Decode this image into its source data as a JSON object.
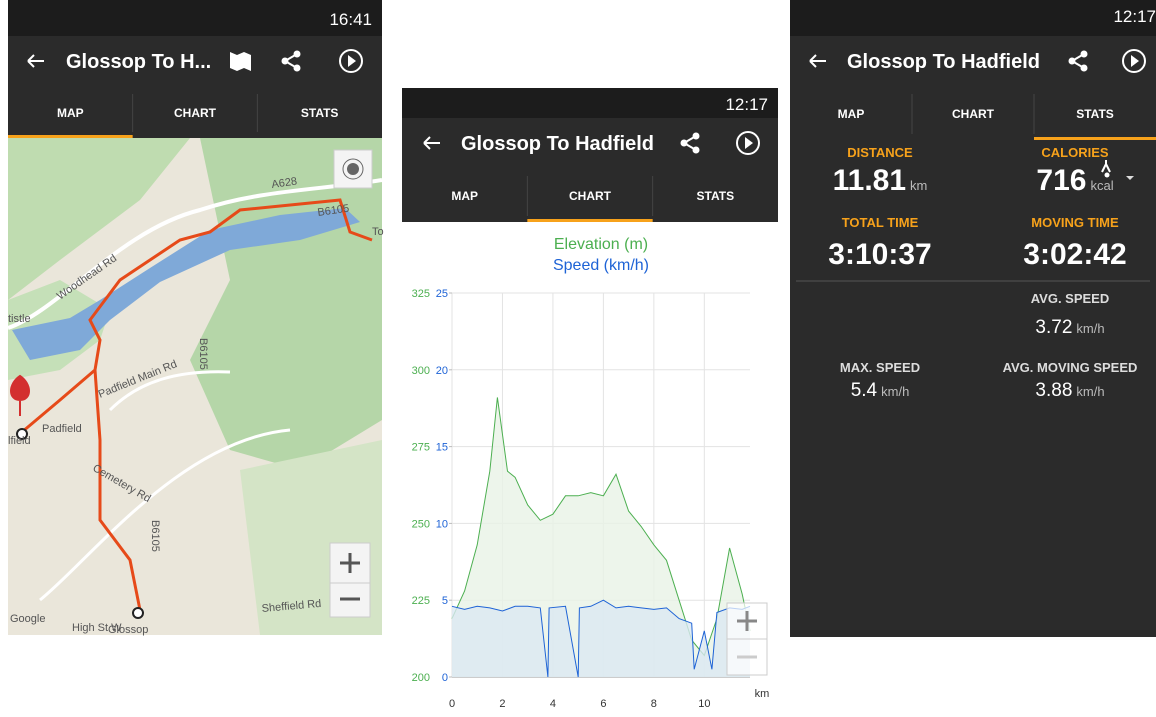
{
  "screens": [
    {
      "status_time": "16:41",
      "title": "Glossop To H...",
      "tabs": [
        "MAP",
        "CHART",
        "STATS"
      ],
      "selected_tab": 0,
      "map_labels": [
        "A628",
        "Woodhead Rd",
        "B6105",
        "To",
        "tistle",
        "B6105",
        "Padfield Main Rd",
        "Padfield",
        "lfield",
        "Cemetery Rd",
        "B6105",
        "Sheffield Rd",
        "Glossop",
        "High St W",
        "Google"
      ]
    },
    {
      "status_time": "12:17",
      "title": "Glossop To Hadfield",
      "tabs": [
        "MAP",
        "CHART",
        "STATS"
      ],
      "selected_tab": 1,
      "chart": {
        "type": "line",
        "x_label": "km",
        "xlim": [
          0,
          11.81
        ],
        "xticks": [
          0,
          2,
          4,
          6,
          8,
          10
        ],
        "ylim": [
          200,
          325
        ],
        "yticks": [
          200,
          225,
          250,
          275,
          300,
          325
        ],
        "y2lim": [
          0,
          25
        ],
        "y2ticks": [
          0,
          5,
          10,
          15,
          20,
          25
        ],
        "series": [
          {
            "name": "Elevation (m)",
            "color": "#4caf50",
            "x": [
              0,
              0.5,
              1,
              1.5,
              1.8,
              2.2,
              2.5,
              3,
              3.5,
              4,
              4.5,
              5,
              5.5,
              6,
              6.5,
              7,
              7.5,
              8,
              8.5,
              9,
              9.5,
              10,
              10.5,
              11,
              11.5,
              11.81
            ],
            "values": [
              219,
              228,
              243,
              267,
              291,
              267,
              265,
              256,
              251,
              253,
              259,
              259,
              260,
              259,
              266,
              254,
              249,
              243,
              238,
              225,
              212,
              207,
              219,
              242,
              227,
              215
            ]
          },
          {
            "name": "Speed (km/h)",
            "color": "#1e63d6",
            "axis": "y2",
            "x": [
              0,
              0.5,
              1,
              1.5,
              2,
              2.5,
              3,
              3.5,
              3.8,
              3.85,
              4.5,
              5,
              5.05,
              5.5,
              6,
              6.5,
              7,
              7.5,
              8,
              8.5,
              9,
              9.5,
              9.6,
              10,
              10.3,
              10.5,
              11,
              11.5,
              11.81
            ],
            "values": [
              4.6,
              4.4,
              4.6,
              4.5,
              4.3,
              4.6,
              4.6,
              4.5,
              0,
              4.5,
              4.6,
              0,
              4.5,
              4.6,
              5.0,
              4.5,
              4.6,
              4.5,
              4.4,
              4.5,
              3.8,
              3.5,
              0.5,
              3,
              0.5,
              4.2,
              4.5,
              4.4,
              4.6
            ]
          }
        ]
      }
    },
    {
      "status_time": "12:17",
      "title": "Glossop To Hadfield",
      "tabs": [
        "MAP",
        "CHART",
        "STATS"
      ],
      "selected_tab": 2,
      "stats": [
        {
          "label": "DISTANCE",
          "value": 11.81,
          "unit": "km"
        },
        {
          "label": "CALORIES",
          "value": 716,
          "unit": "kcal"
        },
        {
          "label": "TOTAL TIME",
          "value": "3:10:37"
        },
        {
          "label": "MOVING TIME",
          "value": "3:02:42"
        },
        {
          "label": "AVG. SPEED",
          "value": 3.72,
          "unit": "km/h"
        },
        {
          "label": "MAX. SPEED",
          "value": 5.4,
          "unit": "km/h"
        },
        {
          "label": "AVG. MOVING SPEED",
          "value": 3.88,
          "unit": "km/h"
        }
      ]
    }
  ]
}
